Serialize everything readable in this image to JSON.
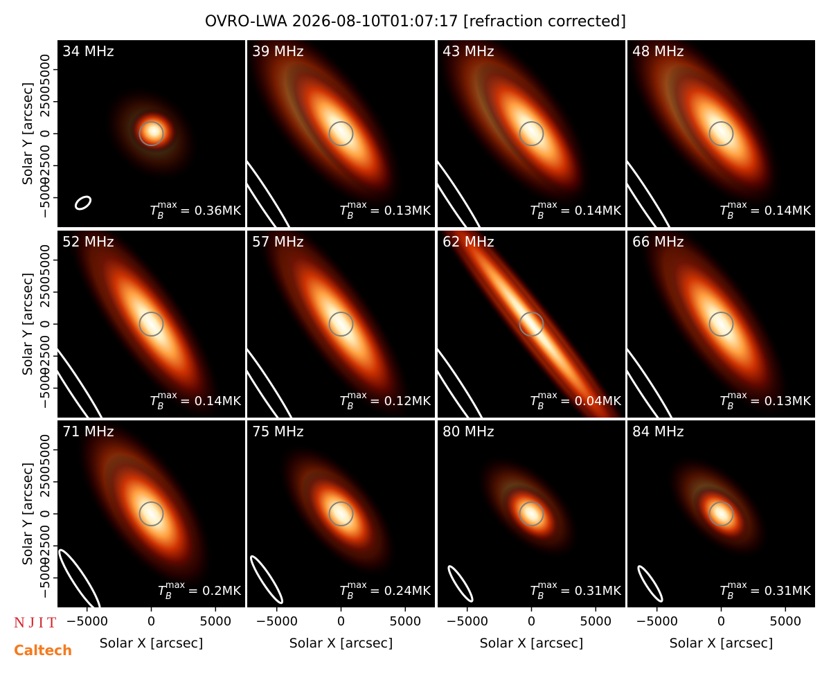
{
  "figure": {
    "title": "OVRO-LWA 2026-08-10T01:07:17 [refraction corrected]",
    "xlabel": "Solar X [arcsec]",
    "ylabel": "Solar Y [arcsec]",
    "logos": [
      "N J I T",
      "Caltech"
    ]
  },
  "chart_data": [
    {
      "type": "image",
      "title": "34 MHz",
      "values": [
        0.36
      ],
      "value_labels": [
        "= 0.36MK"
      ],
      "symbol": "T",
      "subscript": "B",
      "superscript": "max",
      "colormap": "hot",
      "xlim": [
        -7300,
        7300
      ],
      "ylim": [
        -7300,
        7300
      ],
      "xticks": [
        {
          "value": -5000,
          "label": "−5000"
        },
        0,
        5000
      ],
      "yticks": [
        {
          "value": -5000,
          "label": "−5000"
        },
        {
          "value": -2500,
          "label": "−2500"
        },
        0,
        2500,
        5000
      ]
    },
    {
      "type": "image",
      "title": "39 MHz",
      "values": [
        0.13
      ],
      "value_labels": [
        "= 0.13MK"
      ],
      "symbol": "T",
      "subscript": "B",
      "superscript": "max",
      "colormap": "hot",
      "xlim": [
        -7300,
        7300
      ],
      "ylim": [
        -7300,
        7300
      ],
      "xticks": [
        {
          "value": -5000,
          "label": "−5000"
        },
        0,
        5000
      ],
      "yticks": [
        {
          "value": -5000,
          "label": "−5000"
        },
        {
          "value": -2500,
          "label": "−2500"
        },
        0,
        2500,
        5000
      ]
    },
    {
      "type": "image",
      "title": "43 MHz",
      "values": [
        0.14
      ],
      "value_labels": [
        "= 0.14MK"
      ],
      "symbol": "T",
      "subscript": "B",
      "superscript": "max",
      "colormap": "hot",
      "xlim": [
        -7300,
        7300
      ],
      "ylim": [
        -7300,
        7300
      ],
      "xticks": [
        {
          "value": -5000,
          "label": "−5000"
        },
        0,
        5000
      ],
      "yticks": [
        {
          "value": -5000,
          "label": "−5000"
        },
        {
          "value": -2500,
          "label": "−2500"
        },
        0,
        2500,
        5000
      ]
    },
    {
      "type": "image",
      "title": "48 MHz",
      "values": [
        0.14
      ],
      "value_labels": [
        "= 0.14MK"
      ],
      "symbol": "T",
      "subscript": "B",
      "superscript": "max",
      "colormap": "hot",
      "xlim": [
        -7300,
        7300
      ],
      "ylim": [
        -7300,
        7300
      ],
      "xticks": [
        {
          "value": -5000,
          "label": "−5000"
        },
        0,
        5000
      ],
      "yticks": [
        {
          "value": -5000,
          "label": "−5000"
        },
        {
          "value": -2500,
          "label": "−2500"
        },
        0,
        2500,
        5000
      ]
    },
    {
      "type": "image",
      "title": "52 MHz",
      "values": [
        0.14
      ],
      "value_labels": [
        "= 0.14MK"
      ],
      "symbol": "T",
      "subscript": "B",
      "superscript": "max",
      "colormap": "hot",
      "xlim": [
        -7300,
        7300
      ],
      "ylim": [
        -7300,
        7300
      ],
      "xticks": [
        {
          "value": -5000,
          "label": "−5000"
        },
        0,
        5000
      ],
      "yticks": [
        {
          "value": -5000,
          "label": "−5000"
        },
        {
          "value": -2500,
          "label": "−2500"
        },
        0,
        2500,
        5000
      ]
    },
    {
      "type": "image",
      "title": "57 MHz",
      "values": [
        0.12
      ],
      "value_labels": [
        "= 0.12MK"
      ],
      "symbol": "T",
      "subscript": "B",
      "superscript": "max",
      "colormap": "hot",
      "xlim": [
        -7300,
        7300
      ],
      "ylim": [
        -7300,
        7300
      ],
      "xticks": [
        {
          "value": -5000,
          "label": "−5000"
        },
        0,
        5000
      ],
      "yticks": [
        {
          "value": -5000,
          "label": "−5000"
        },
        {
          "value": -2500,
          "label": "−2500"
        },
        0,
        2500,
        5000
      ]
    },
    {
      "type": "image",
      "title": "62 MHz",
      "values": [
        0.04
      ],
      "value_labels": [
        "= 0.04MK"
      ],
      "symbol": "T",
      "subscript": "B",
      "superscript": "max",
      "colormap": "hot",
      "xlim": [
        -7300,
        7300
      ],
      "ylim": [
        -7300,
        7300
      ],
      "xticks": [
        {
          "value": -5000,
          "label": "−5000"
        },
        0,
        5000
      ],
      "yticks": [
        {
          "value": -5000,
          "label": "−5000"
        },
        {
          "value": -2500,
          "label": "−2500"
        },
        0,
        2500,
        5000
      ]
    },
    {
      "type": "image",
      "title": "66 MHz",
      "values": [
        0.13
      ],
      "value_labels": [
        "= 0.13MK"
      ],
      "symbol": "T",
      "subscript": "B",
      "superscript": "max",
      "colormap": "hot",
      "xlim": [
        -7300,
        7300
      ],
      "ylim": [
        -7300,
        7300
      ],
      "xticks": [
        {
          "value": -5000,
          "label": "−5000"
        },
        0,
        5000
      ],
      "yticks": [
        {
          "value": -5000,
          "label": "−5000"
        },
        {
          "value": -2500,
          "label": "−2500"
        },
        0,
        2500,
        5000
      ]
    },
    {
      "type": "image",
      "title": "71 MHz",
      "values": [
        0.2
      ],
      "value_labels": [
        "= 0.2MK"
      ],
      "symbol": "T",
      "subscript": "B",
      "superscript": "max",
      "colormap": "hot",
      "xlim": [
        -7300,
        7300
      ],
      "ylim": [
        -7300,
        7300
      ],
      "xticks": [
        {
          "value": -5000,
          "label": "−5000"
        },
        0,
        5000
      ],
      "yticks": [
        {
          "value": -5000,
          "label": "−5000"
        },
        {
          "value": -2500,
          "label": "−2500"
        },
        0,
        2500,
        5000
      ]
    },
    {
      "type": "image",
      "title": "75 MHz",
      "values": [
        0.24
      ],
      "value_labels": [
        "= 0.24MK"
      ],
      "symbol": "T",
      "subscript": "B",
      "superscript": "max",
      "colormap": "hot",
      "xlim": [
        -7300,
        7300
      ],
      "ylim": [
        -7300,
        7300
      ],
      "xticks": [
        {
          "value": -5000,
          "label": "−5000"
        },
        0,
        5000
      ],
      "yticks": [
        {
          "value": -5000,
          "label": "−5000"
        },
        {
          "value": -2500,
          "label": "−2500"
        },
        0,
        2500,
        5000
      ]
    },
    {
      "type": "image",
      "title": "80 MHz",
      "values": [
        0.31
      ],
      "value_labels": [
        "= 0.31MK"
      ],
      "symbol": "T",
      "subscript": "B",
      "superscript": "max",
      "colormap": "hot",
      "xlim": [
        -7300,
        7300
      ],
      "ylim": [
        -7300,
        7300
      ],
      "xticks": [
        {
          "value": -5000,
          "label": "−5000"
        },
        0,
        5000
      ],
      "yticks": [
        {
          "value": -5000,
          "label": "−5000"
        },
        {
          "value": -2500,
          "label": "−2500"
        },
        0,
        2500,
        5000
      ]
    },
    {
      "type": "image",
      "title": "84 MHz",
      "values": [
        0.31
      ],
      "value_labels": [
        "= 0.31MK"
      ],
      "symbol": "T",
      "subscript": "B",
      "superscript": "max",
      "colormap": "hot",
      "xlim": [
        -7300,
        7300
      ],
      "ylim": [
        -7300,
        7300
      ],
      "xticks": [
        {
          "value": -5000,
          "label": "−5000"
        },
        0,
        5000
      ],
      "yticks": [
        {
          "value": -5000,
          "label": "−5000"
        },
        {
          "value": -2500,
          "label": "−2500"
        },
        0,
        2500,
        5000
      ]
    }
  ]
}
